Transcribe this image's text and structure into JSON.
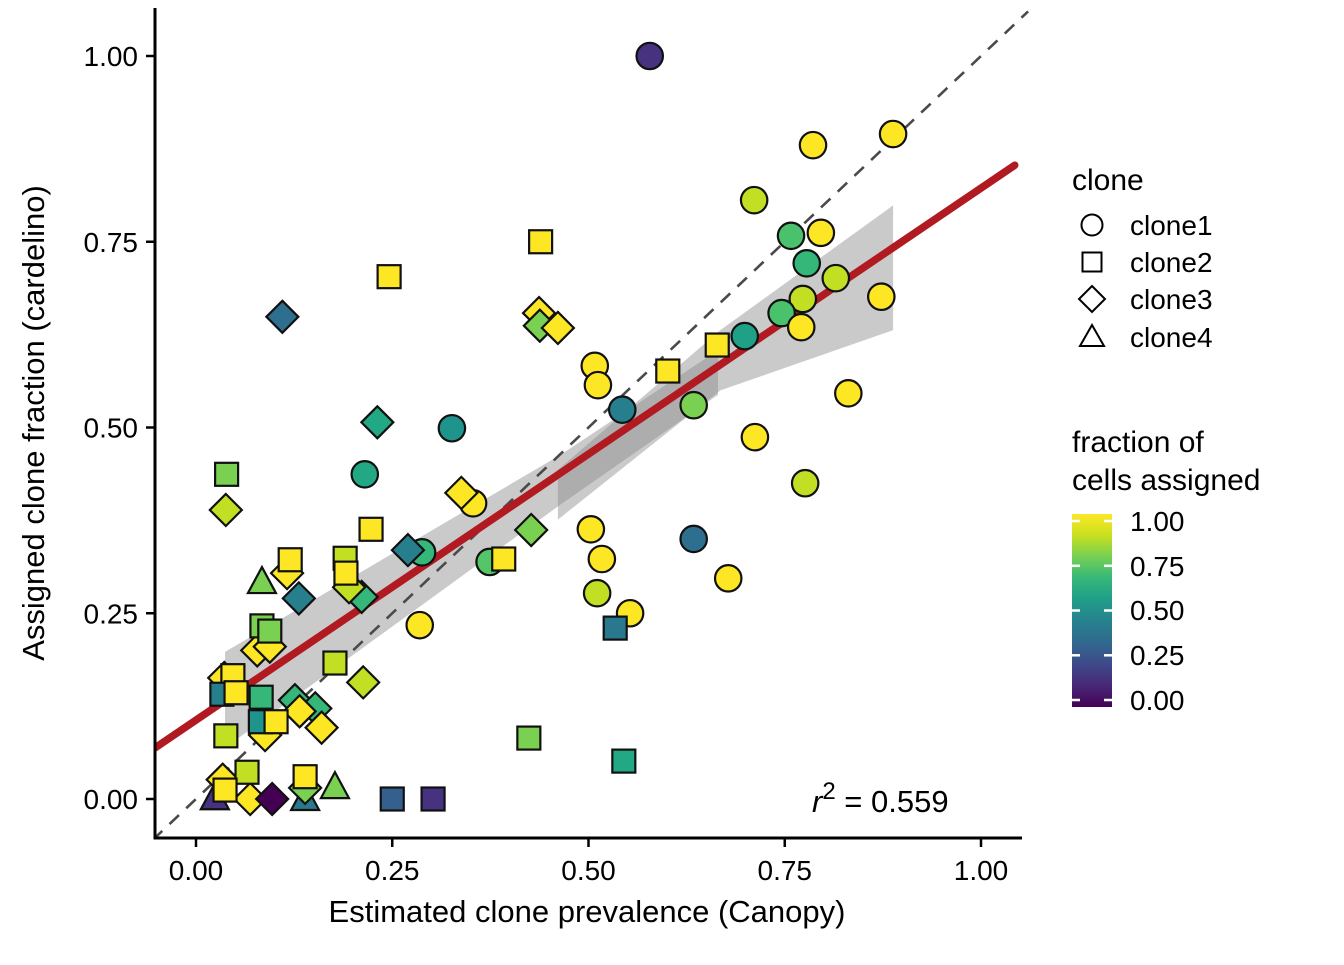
{
  "figure": {
    "xlabel": "Estimated clone prevalence (Canopy)",
    "ylabel": "Assigned clone fraction (cardelino)",
    "x_tick_labels": [
      "0.00",
      "0.25",
      "0.50",
      "0.75",
      "1.00"
    ],
    "y_tick_labels": [
      "0.00",
      "0.25",
      "0.50",
      "0.75",
      "1.00"
    ],
    "annotation": {
      "symbol": "r",
      "exponent": "2",
      "rest": " = 0.559"
    }
  },
  "legend": {
    "shape": {
      "title": "clone",
      "items": [
        {
          "label": "clone1",
          "shape": "circle"
        },
        {
          "label": "clone2",
          "shape": "square"
        },
        {
          "label": "clone3",
          "shape": "diamond"
        },
        {
          "label": "clone4",
          "shape": "triangle"
        }
      ]
    },
    "color": {
      "title_line1": "fraction of",
      "title_line2": "cells assigned",
      "ticks": [
        "1.00",
        "0.75",
        "0.50",
        "0.25",
        "0.00"
      ],
      "gradient_top_to_bottom": [
        "#fde725",
        "#c8e020",
        "#75d054",
        "#35b779",
        "#1f9e89",
        "#26828e",
        "#31688e",
        "#3e4a89",
        "#482878",
        "#440154"
      ]
    }
  },
  "chart_data": {
    "type": "scatter",
    "xlabel": "Estimated clone prevalence (Canopy)",
    "ylabel": "Assigned clone fraction (cardelino)",
    "xlim": [
      -0.05,
      1.05
    ],
    "ylim": [
      -0.05,
      1.05
    ],
    "x_ticks": [
      0,
      0.25,
      0.5,
      0.75,
      1.0
    ],
    "y_ticks": [
      0,
      0.25,
      0.5,
      0.75,
      1.0
    ],
    "grid": false,
    "legend_position": "right",
    "r_squared": 0.559,
    "shape_encoding": {
      "clone1": "circle",
      "clone2": "square",
      "clone3": "diamond",
      "clone4": "triangle"
    },
    "color_encoding": {
      "variable": "fraction of cells assigned",
      "scale": "viridis",
      "domain": [
        0,
        1
      ]
    },
    "identity_line": {
      "style": "dashed",
      "from": [
        -0.055,
        -0.055
      ],
      "to": [
        1.06,
        1.06
      ],
      "color": "#4a4a4a",
      "width": 2.6
    },
    "regression_line": {
      "from": [
        -0.052,
        0.069
      ],
      "to": [
        1.043,
        0.853
      ],
      "color": "#b11a21",
      "width": 7.5
    },
    "ribbon_color": "#8a8a8a",
    "ribbon_opacity": 0.45,
    "confidence_ribbons": [
      [
        [
          0.037,
          0.198
        ],
        [
          0.464,
          0.463
        ],
        [
          0.665,
          0.604
        ],
        [
          0.665,
          0.544
        ],
        [
          0.464,
          0.396
        ],
        [
          0.037,
          0.069
        ]
      ],
      [
        [
          0.461,
          0.443
        ],
        [
          0.668,
          0.631
        ],
        [
          0.888,
          0.799
        ],
        [
          0.888,
          0.631
        ],
        [
          0.668,
          0.55
        ],
        [
          0.461,
          0.376
        ]
      ]
    ],
    "point_fields": [
      "x",
      "y",
      "shape",
      "color",
      "fraction_assigned"
    ],
    "points": [
      [
        0.578,
        1.0,
        "circle",
        "#46327e",
        0.1
      ],
      [
        0.786,
        0.88,
        "circle",
        "#fde725",
        1.0
      ],
      [
        0.888,
        0.895,
        "circle",
        "#fde725",
        1.0
      ],
      [
        0.711,
        0.806,
        "circle",
        "#c2df23",
        0.92
      ],
      [
        0.758,
        0.758,
        "circle",
        "#4ac16d",
        0.73
      ],
      [
        0.796,
        0.762,
        "circle",
        "#fde725",
        1.0
      ],
      [
        0.778,
        0.721,
        "circle",
        "#35b779",
        0.7
      ],
      [
        0.815,
        0.701,
        "circle",
        "#c2df23",
        0.92
      ],
      [
        0.773,
        0.673,
        "circle",
        "#c2df23",
        0.92
      ],
      [
        0.746,
        0.654,
        "circle",
        "#4ac16d",
        0.73
      ],
      [
        0.771,
        0.635,
        "circle",
        "#fde725",
        1.0
      ],
      [
        0.699,
        0.623,
        "circle",
        "#1fa187",
        0.6
      ],
      [
        0.873,
        0.676,
        "circle",
        "#fde725",
        1.0
      ],
      [
        0.831,
        0.546,
        "circle",
        "#fde725",
        1.0
      ],
      [
        0.712,
        0.487,
        "circle",
        "#fde725",
        1.0
      ],
      [
        0.776,
        0.425,
        "circle",
        "#c2df23",
        0.92
      ],
      [
        0.634,
        0.35,
        "circle",
        "#2e6e8e",
        0.36
      ],
      [
        0.678,
        0.297,
        "circle",
        "#fde725",
        1.0
      ],
      [
        0.634,
        0.53,
        "circle",
        "#7ad151",
        0.8
      ],
      [
        0.543,
        0.524,
        "circle",
        "#277f8e",
        0.46
      ],
      [
        0.508,
        0.583,
        "circle",
        "#fde725",
        1.0
      ],
      [
        0.512,
        0.557,
        "circle",
        "#fde725",
        1.0
      ],
      [
        0.503,
        0.363,
        "circle",
        "#fde725",
        1.0
      ],
      [
        0.517,
        0.323,
        "circle",
        "#fde725",
        1.0
      ],
      [
        0.511,
        0.277,
        "circle",
        "#c2df23",
        0.92
      ],
      [
        0.553,
        0.25,
        "circle",
        "#fde725",
        1.0
      ],
      [
        0.374,
        0.319,
        "circle",
        "#54c568",
        0.76
      ],
      [
        0.353,
        0.398,
        "circle",
        "#fde725",
        1.0
      ],
      [
        0.326,
        0.499,
        "circle",
        "#1f948c",
        0.55
      ],
      [
        0.288,
        0.332,
        "circle",
        "#35b779",
        0.7
      ],
      [
        0.285,
        0.234,
        "circle",
        "#fde725",
        1.0
      ],
      [
        0.215,
        0.437,
        "circle",
        "#22a884",
        0.62
      ],
      [
        0.084,
        0.292,
        "triangle",
        "#7ad151",
        0.8
      ],
      [
        0.024,
        0.001,
        "triangle",
        "#46327e",
        0.1
      ],
      [
        0.139,
        0.0,
        "triangle",
        "#2a788e",
        0.42
      ],
      [
        0.177,
        0.016,
        "triangle",
        "#7ad151",
        0.8
      ],
      [
        0.11,
        0.649,
        "diamond",
        "#2e6e8e",
        0.36
      ],
      [
        0.437,
        0.654,
        "diamond",
        "#fde725",
        1.0
      ],
      [
        0.438,
        0.637,
        "diamond",
        "#7ad151",
        0.8
      ],
      [
        0.461,
        0.634,
        "diamond",
        "#fde725",
        1.0
      ],
      [
        0.231,
        0.507,
        "diamond",
        "#22a884",
        0.62
      ],
      [
        0.038,
        0.389,
        "diamond",
        "#c2df23",
        0.92
      ],
      [
        0.338,
        0.412,
        "diamond",
        "#fde725",
        1.0
      ],
      [
        0.427,
        0.362,
        "diamond",
        "#7ad151",
        0.8
      ],
      [
        0.27,
        0.335,
        "diamond",
        "#277f8e",
        0.46
      ],
      [
        0.116,
        0.304,
        "diamond",
        "#fde725",
        1.0
      ],
      [
        0.131,
        0.27,
        "diamond",
        "#277f8e",
        0.46
      ],
      [
        0.211,
        0.272,
        "diamond",
        "#35b779",
        0.7
      ],
      [
        0.195,
        0.285,
        "diamond",
        "#c2df23",
        0.92
      ],
      [
        0.078,
        0.2,
        "diamond",
        "#fde725",
        1.0
      ],
      [
        0.094,
        0.205,
        "diamond",
        "#fde725",
        1.0
      ],
      [
        0.213,
        0.157,
        "diamond",
        "#c2df23",
        0.92
      ],
      [
        0.126,
        0.133,
        "diamond",
        "#35b779",
        0.7
      ],
      [
        0.152,
        0.122,
        "diamond",
        "#35b779",
        0.7
      ],
      [
        0.132,
        0.118,
        "diamond",
        "#fde725",
        1.0
      ],
      [
        0.036,
        0.163,
        "diamond",
        "#fde725",
        1.0
      ],
      [
        0.088,
        0.086,
        "diamond",
        "#fde725",
        1.0
      ],
      [
        0.16,
        0.096,
        "diamond",
        "#fde725",
        1.0
      ],
      [
        0.034,
        0.026,
        "diamond",
        "#fde725",
        1.0
      ],
      [
        0.069,
        0.0,
        "diamond",
        "#fde725",
        1.0
      ],
      [
        0.097,
        0.0,
        "diamond",
        "#440154",
        0.01
      ],
      [
        0.139,
        0.015,
        "diamond",
        "#7ad151",
        0.8
      ],
      [
        0.246,
        0.703,
        "square",
        "#fde725",
        1.0
      ],
      [
        0.439,
        0.75,
        "square",
        "#fde725",
        1.0
      ],
      [
        0.601,
        0.576,
        "square",
        "#fde725",
        1.0
      ],
      [
        0.664,
        0.611,
        "square",
        "#fde725",
        1.0
      ],
      [
        0.534,
        0.23,
        "square",
        "#2a788e",
        0.42
      ],
      [
        0.424,
        0.082,
        "square",
        "#7ad151",
        0.8
      ],
      [
        0.545,
        0.051,
        "square",
        "#22a884",
        0.62
      ],
      [
        0.302,
        0.0,
        "square",
        "#46327e",
        0.1
      ],
      [
        0.25,
        0.0,
        "square",
        "#355f8d",
        0.3
      ],
      [
        0.392,
        0.323,
        "square",
        "#fde725",
        1.0
      ],
      [
        0.223,
        0.363,
        "square",
        "#fde725",
        1.0
      ],
      [
        0.19,
        0.324,
        "square",
        "#c2df23",
        0.92
      ],
      [
        0.191,
        0.304,
        "square",
        "#fde725",
        1.0
      ],
      [
        0.12,
        0.322,
        "square",
        "#fde725",
        1.0
      ],
      [
        0.039,
        0.437,
        "square",
        "#7ad151",
        0.8
      ],
      [
        0.084,
        0.233,
        "square",
        "#7ad151",
        0.8
      ],
      [
        0.094,
        0.226,
        "square",
        "#7ad151",
        0.8
      ],
      [
        0.177,
        0.183,
        "square",
        "#c2df23",
        0.92
      ],
      [
        0.047,
        0.166,
        "square",
        "#fde725",
        1.0
      ],
      [
        0.033,
        0.141,
        "square",
        "#277f8e",
        0.46
      ],
      [
        0.051,
        0.143,
        "square",
        "#fde725",
        1.0
      ],
      [
        0.083,
        0.137,
        "square",
        "#35b779",
        0.7
      ],
      [
        0.082,
        0.104,
        "square",
        "#1f948c",
        0.55
      ],
      [
        0.102,
        0.104,
        "square",
        "#fde725",
        1.0
      ],
      [
        0.038,
        0.085,
        "square",
        "#c2df23",
        0.92
      ],
      [
        0.065,
        0.036,
        "square",
        "#c2df23",
        0.92
      ],
      [
        0.037,
        0.012,
        "square",
        "#fde725",
        1.0
      ],
      [
        0.139,
        0.03,
        "square",
        "#fde725",
        1.0
      ]
    ]
  }
}
